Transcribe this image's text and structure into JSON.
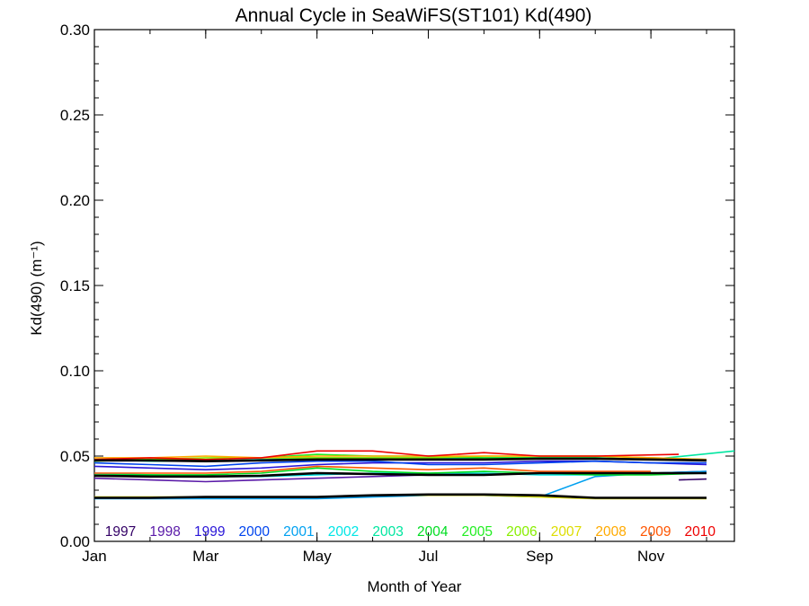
{
  "chart_data": {
    "type": "line",
    "title": "Annual Cycle in SeaWiFS(ST101) Kd(490)",
    "xlabel": "Month of Year",
    "ylabel": "Kd(490) (m⁻¹)",
    "ylim": [
      0,
      0.3
    ],
    "xlim": [
      1,
      12.5
    ],
    "yticks": [
      "0.00",
      "0.05",
      "0.10",
      "0.15",
      "0.20",
      "0.25",
      "0.30"
    ],
    "xticks": [
      {
        "label": "Jan",
        "x": 1
      },
      {
        "label": "Mar",
        "x": 3
      },
      {
        "label": "May",
        "x": 5
      },
      {
        "label": "Jul",
        "x": 7
      },
      {
        "label": "Sep",
        "x": 9
      },
      {
        "label": "Nov",
        "x": 11
      }
    ],
    "grid": false,
    "legend": "bottom, inside plot",
    "series": [
      {
        "name": "1997",
        "color": "#330066",
        "x": [
          11.5,
          12
        ],
        "y": [
          0.036,
          0.0365
        ]
      },
      {
        "name": "1998",
        "color": "#5a1aa8",
        "x": [
          1,
          2,
          3,
          4,
          5,
          6,
          7,
          8,
          9,
          10,
          11,
          12
        ],
        "y": [
          0.037,
          0.036,
          0.035,
          0.036,
          0.037,
          0.038,
          0.039,
          0.039,
          0.04,
          0.04,
          0.04,
          0.041
        ]
      },
      {
        "name": "1999",
        "color": "#2a16d8",
        "x": [
          1,
          2,
          3,
          4,
          5,
          6,
          7,
          8,
          9,
          10,
          11,
          12
        ],
        "y": [
          0.044,
          0.043,
          0.042,
          0.043,
          0.045,
          0.046,
          0.046,
          0.046,
          0.047,
          0.047,
          0.046,
          0.045
        ]
      },
      {
        "name": "2000",
        "color": "#0044ee",
        "x": [
          1,
          2,
          3,
          4,
          5,
          6,
          7,
          8,
          9,
          10,
          11,
          12
        ],
        "y": [
          0.046,
          0.045,
          0.044,
          0.046,
          0.047,
          0.047,
          0.045,
          0.045,
          0.046,
          0.047,
          0.046,
          0.046
        ]
      },
      {
        "name": "2001",
        "color": "#00a0f0",
        "x": [
          1,
          2,
          3,
          4,
          5,
          6,
          7,
          8,
          9,
          10,
          11,
          12
        ],
        "y": [
          0.025,
          0.025,
          0.025,
          0.025,
          0.025,
          0.026,
          0.027,
          0.027,
          0.026,
          0.038,
          0.04,
          0.041
        ]
      },
      {
        "name": "2002",
        "color": "#00e6e6",
        "x": [
          1,
          2,
          3,
          4,
          5,
          6,
          7,
          8,
          9,
          10,
          11,
          12
        ],
        "y": [
          0.04,
          0.039,
          0.038,
          0.038,
          0.039,
          0.04,
          0.04,
          0.04,
          0.039,
          0.039,
          0.04,
          0.04
        ]
      },
      {
        "name": "2003",
        "color": "#00e6a0",
        "x": [
          1,
          2,
          3,
          4,
          5,
          6,
          7,
          8,
          9,
          10,
          11,
          12.5
        ],
        "y": [
          0.048,
          0.047,
          0.047,
          0.048,
          0.049,
          0.049,
          0.049,
          0.049,
          0.049,
          0.049,
          0.048,
          0.053
        ]
      },
      {
        "name": "2004",
        "color": "#00dd22",
        "x": [
          1,
          2,
          3,
          4,
          5,
          6,
          7,
          8,
          9,
          10,
          11,
          12
        ],
        "y": [
          0.039,
          0.039,
          0.039,
          0.04,
          0.043,
          0.041,
          0.04,
          0.041,
          0.04,
          0.039,
          0.039,
          0.04
        ]
      },
      {
        "name": "2005",
        "color": "#22ee22",
        "x": [
          1,
          2,
          3,
          4,
          5,
          6,
          7,
          8,
          9,
          10,
          11,
          12
        ],
        "y": [
          0.047,
          0.048,
          0.048,
          0.049,
          0.051,
          0.05,
          0.05,
          0.049,
          0.049,
          0.049,
          0.048,
          0.048
        ]
      },
      {
        "name": "2006",
        "color": "#88ee00",
        "x": [
          1,
          2,
          3,
          4,
          5,
          6,
          7,
          8,
          9,
          10,
          11,
          12
        ],
        "y": [
          0.048,
          0.048,
          0.049,
          0.049,
          0.049,
          0.049,
          0.049,
          0.05,
          0.05,
          0.05,
          0.049,
          0.048
        ]
      },
      {
        "name": "2007",
        "color": "#dddd00",
        "x": [
          1,
          2,
          3,
          4,
          5,
          6,
          7,
          8,
          9,
          10,
          11,
          12
        ],
        "y": [
          0.026,
          0.026,
          0.026,
          0.026,
          0.026,
          0.027,
          0.027,
          0.027,
          0.026,
          0.025,
          0.025,
          0.025
        ]
      },
      {
        "name": "2008",
        "color": "#ffaa00",
        "x": [
          1,
          2,
          3,
          4,
          5,
          6,
          7,
          8,
          9,
          10,
          11,
          12
        ],
        "y": [
          0.049,
          0.049,
          0.05,
          0.049,
          0.05,
          0.05,
          0.05,
          0.05,
          0.05,
          0.05,
          0.049,
          0.048
        ]
      },
      {
        "name": "2009",
        "color": "#ff5500",
        "x": [
          1,
          2,
          3,
          4,
          5,
          6,
          7,
          8,
          9,
          10,
          11
        ],
        "y": [
          0.04,
          0.04,
          0.04,
          0.041,
          0.044,
          0.043,
          0.042,
          0.043,
          0.041,
          0.041,
          0.041
        ]
      },
      {
        "name": "2010",
        "color": "#ee0000",
        "x": [
          1,
          2,
          3,
          4,
          5,
          6,
          7,
          8,
          9,
          10,
          11.5
        ],
        "y": [
          0.048,
          0.049,
          0.048,
          0.049,
          0.053,
          0.053,
          0.05,
          0.052,
          0.05,
          0.05,
          0.051
        ]
      },
      {
        "name": "",
        "color": "#000000",
        "x": [
          1,
          2,
          3,
          4,
          5,
          6,
          7,
          8,
          9,
          10,
          11,
          12
        ],
        "y": [
          0.0475,
          0.0475,
          0.047,
          0.0475,
          0.048,
          0.048,
          0.048,
          0.048,
          0.0485,
          0.0485,
          0.048,
          0.0475
        ]
      },
      {
        "name": "",
        "color": "#000000",
        "x": [
          1,
          2,
          3,
          4,
          5,
          6,
          7,
          8,
          9,
          10,
          11,
          12
        ],
        "y": [
          0.0385,
          0.038,
          0.038,
          0.0385,
          0.04,
          0.0395,
          0.039,
          0.039,
          0.04,
          0.04,
          0.04,
          0.04
        ]
      },
      {
        "name": "",
        "color": "#000000",
        "x": [
          1,
          2,
          3,
          4,
          5,
          6,
          7,
          8,
          9,
          10,
          11,
          12
        ],
        "y": [
          0.0255,
          0.0255,
          0.026,
          0.026,
          0.026,
          0.027,
          0.0275,
          0.0275,
          0.027,
          0.0255,
          0.0255,
          0.0255
        ]
      }
    ]
  }
}
